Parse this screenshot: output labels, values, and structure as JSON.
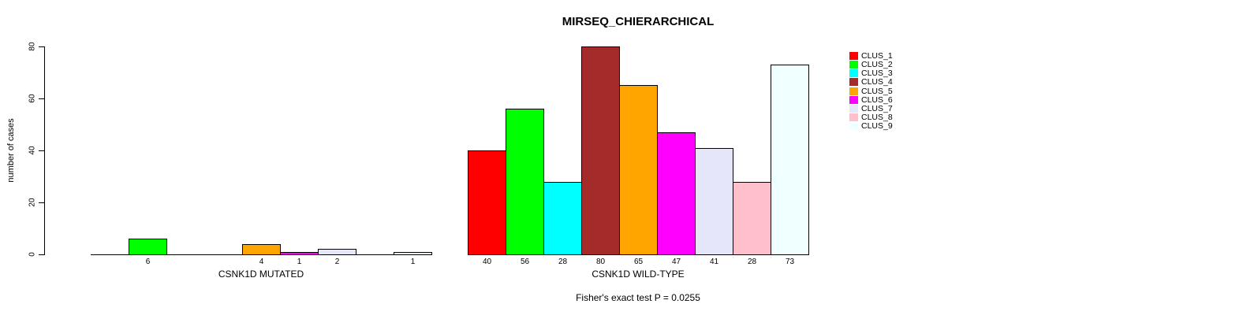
{
  "chart_data": {
    "type": "bar",
    "title": "MIRSEQ_CHIERARCHICAL",
    "ylabel": "number of cases",
    "ylim": [
      0,
      80
    ],
    "yticks": [
      0,
      20,
      40,
      60,
      80
    ],
    "grid": false,
    "legend_position": "top-right",
    "categories": [
      "CSNK1D MUTATED",
      "CSNK1D WILD-TYPE"
    ],
    "series": [
      {
        "name": "CLUS_1",
        "color": "#FF0000",
        "values": [
          0,
          40
        ]
      },
      {
        "name": "CLUS_2",
        "color": "#00FF00",
        "values": [
          6,
          56
        ]
      },
      {
        "name": "CLUS_3",
        "color": "#00FFFF",
        "values": [
          0,
          28
        ]
      },
      {
        "name": "CLUS_4",
        "color": "#A52A2A",
        "values": [
          0,
          80
        ]
      },
      {
        "name": "CLUS_5",
        "color": "#FFA500",
        "values": [
          4,
          65
        ]
      },
      {
        "name": "CLUS_6",
        "color": "#FF00FF",
        "values": [
          1,
          47
        ]
      },
      {
        "name": "CLUS_7",
        "color": "#E6E6FA",
        "values": [
          2,
          41
        ]
      },
      {
        "name": "CLUS_8",
        "color": "#FFC0CB",
        "values": [
          0,
          28
        ]
      },
      {
        "name": "CLUS_9",
        "color": "#F0FFFF",
        "values": [
          1,
          73
        ]
      }
    ],
    "bar_value_labels": [
      [
        "",
        "6",
        "",
        "",
        "4",
        "1",
        "2",
        "",
        "1"
      ],
      [
        "40",
        "56",
        "28",
        "80",
        "65",
        "47",
        "41",
        "28",
        "73"
      ]
    ],
    "annotation": "Fisher's exact test P = 0.0255",
    "axis_color": "#000000",
    "bar_border_color": "#000000",
    "background": "#FFFFFF"
  }
}
